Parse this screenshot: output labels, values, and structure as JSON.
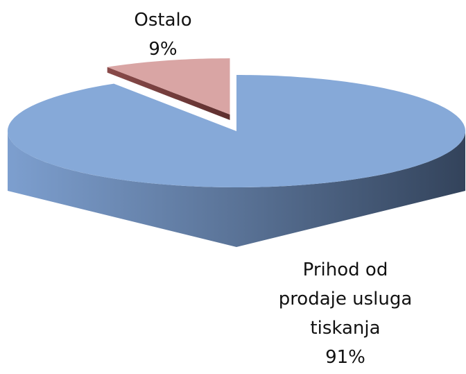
{
  "chart_data": {
    "type": "pie",
    "categories": [
      "Prihod od prodaje usluga tiskanja",
      "Ostalo"
    ],
    "values": [
      91,
      9
    ],
    "value_labels": [
      "91%",
      "9%"
    ],
    "colors": [
      "#86a9d8",
      "#d9a5a4"
    ]
  }
}
